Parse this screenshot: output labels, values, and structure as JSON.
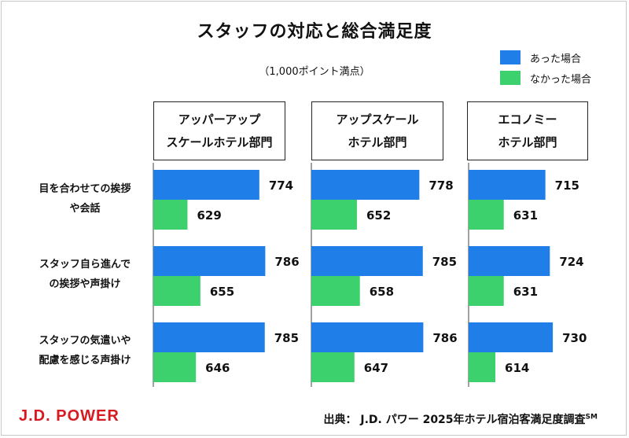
{
  "title": "スタッフの対応と総合満足度",
  "subtitle": "（1,000ポイント満点）",
  "logo_text": "J.D. POWER",
  "source": {
    "text": "出典： J.D. パワー 2025年ホテル宿泊客満足度調査",
    "superscript": "SM"
  },
  "colors": {
    "blue": "#1f7ee8",
    "green": "#3dd16e",
    "brand_red": "#d71920"
  },
  "chart_data": {
    "type": "bar",
    "orientation": "horizontal",
    "title": "スタッフの対応と総合満足度",
    "subtitle": "（1,000ポイント満点）",
    "legend_position": "top-right",
    "groups": [
      {
        "name_lines": [
          "アッパーアップ",
          "スケールホテル部門"
        ]
      },
      {
        "name_lines": [
          "アップスケール",
          "ホテル部門"
        ]
      },
      {
        "name_lines": [
          "エコノミー",
          "ホテル部門"
        ]
      }
    ],
    "categories": [
      {
        "label_lines": [
          "目を合わせての挨拶",
          "や会話"
        ]
      },
      {
        "label_lines": [
          "スタッフ自ら進んで",
          "の挨拶や声掛け"
        ]
      },
      {
        "label_lines": [
          "スタッフの気遣いや",
          "配慮を感じる声掛け"
        ]
      }
    ],
    "series": [
      {
        "name": "あった場合",
        "color": "#1f7ee8",
        "values": [
          [
            774,
            786,
            785
          ],
          [
            778,
            785,
            786
          ],
          [
            715,
            724,
            730
          ]
        ]
      },
      {
        "name": "なかった場合",
        "color": "#3dd16e",
        "values": [
          [
            629,
            655,
            646
          ],
          [
            652,
            658,
            647
          ],
          [
            631,
            631,
            614
          ]
        ]
      }
    ]
  }
}
